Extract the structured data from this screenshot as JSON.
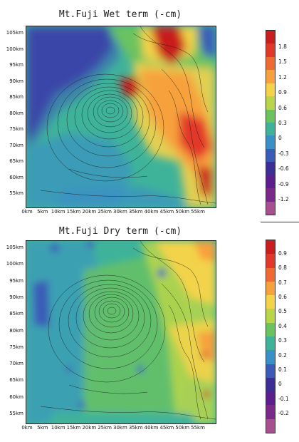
{
  "panels": [
    {
      "title": "Mt.Fuji Wet term (-cm)",
      "y_ticks": [
        "105km",
        "100km",
        "95km",
        "90km",
        "85km",
        "80km",
        "75km",
        "70km",
        "65km",
        "60km",
        "55km"
      ],
      "x_ticks": [
        "0km",
        "5km",
        "10km",
        "15km",
        "20km",
        "25km",
        "30km",
        "35km",
        "40km",
        "45km",
        "50km",
        "55km"
      ],
      "colorbar": {
        "labels": [
          "1.8",
          "1.5",
          "1.2",
          "0.9",
          "0.6",
          "0.3",
          "0",
          "-0.3",
          "-0.6",
          "-0.9",
          "-1.2"
        ],
        "colors": [
          "#c81e1e",
          "#e2382a",
          "#ef6a33",
          "#f7a13e",
          "#f3d34a",
          "#b9d64b",
          "#6cc35e",
          "#3fb39a",
          "#3a8fc6",
          "#3a5bb8",
          "#3b2f96",
          "#5a1f8c",
          "#7a2a86",
          "#a6508f"
        ]
      },
      "fields": [
        "wet"
      ]
    },
    {
      "title": "Mt.Fuji Dry term (-cm)",
      "y_ticks": [
        "105km",
        "100km",
        "95km",
        "90km",
        "85km",
        "80km",
        "75km",
        "70km",
        "65km",
        "60km",
        "55km"
      ],
      "x_ticks": [
        "0km",
        "5km",
        "10km",
        "15km",
        "20km",
        "25km",
        "30km",
        "35km",
        "40km",
        "45km",
        "50km",
        "55km"
      ],
      "colorbar": {
        "labels": [
          "0.9",
          "0.8",
          "0.7",
          "0.6",
          "0.5",
          "0.4",
          "0.3",
          "0.2",
          "0.1",
          "0",
          "-0.1",
          "-0.2"
        ],
        "colors": [
          "#c81e1e",
          "#e2382a",
          "#ef6a33",
          "#f7a13e",
          "#f3d34a",
          "#b9d64b",
          "#6cc35e",
          "#3fb39a",
          "#3a8fc6",
          "#3a5bb8",
          "#3b2f96",
          "#5a1f8c",
          "#7a2a86",
          "#a6508f"
        ]
      },
      "fields": [
        "dry"
      ]
    }
  ]
}
